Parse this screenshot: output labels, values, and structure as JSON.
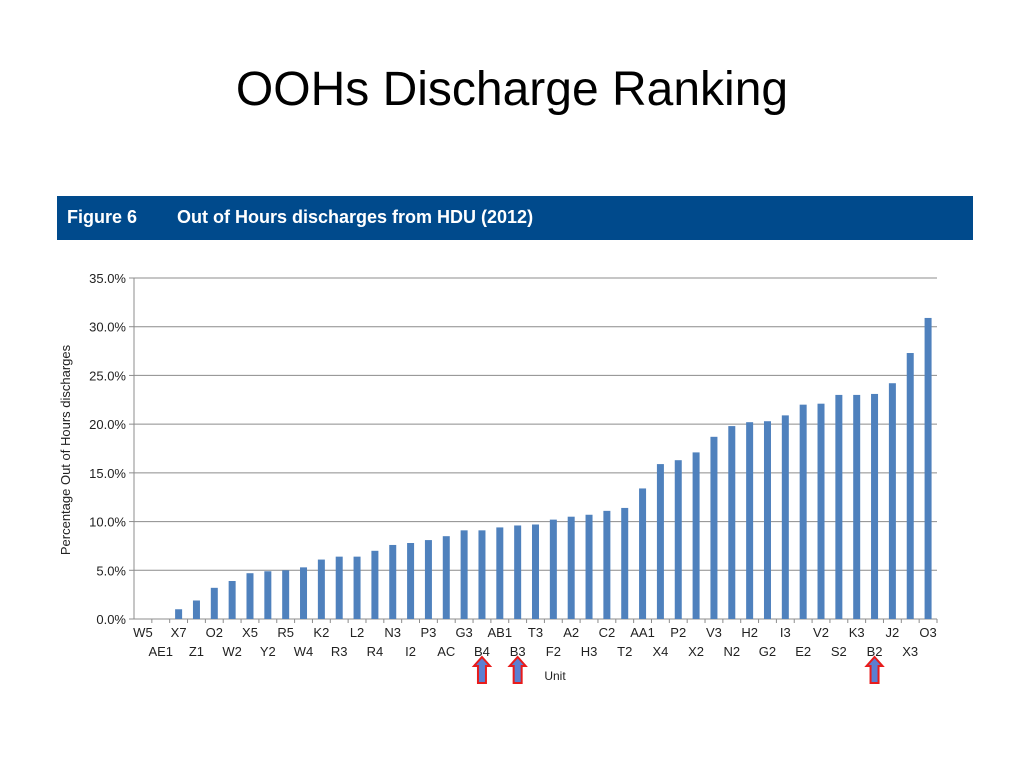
{
  "slide": {
    "title": "OOHs Discharge Ranking"
  },
  "figure": {
    "number": "Figure 6",
    "title": "Out of Hours discharges from HDU (2012)"
  },
  "chart_data": {
    "type": "bar",
    "title": "Out of Hours discharges from HDU (2012)",
    "xlabel": "Unit",
    "ylabel": "Percentage Out of Hours discharges",
    "ylim": [
      0,
      35
    ],
    "yticks": [
      "0.0%",
      "5.0%",
      "10.0%",
      "15.0%",
      "20.0%",
      "25.0%",
      "30.0%",
      "35.0%"
    ],
    "grid": true,
    "bar_color": "#4f81bd",
    "categories": [
      "W5",
      "AE1",
      "X7",
      "Z1",
      "O2",
      "W2",
      "X5",
      "Y2",
      "R5",
      "W4",
      "K2",
      "R3",
      "L2",
      "R4",
      "N3",
      "I2",
      "P3",
      "AC",
      "G3",
      "B4",
      "AB1",
      "B3",
      "T3",
      "F2",
      "A2",
      "H3",
      "C2",
      "T2",
      "AA1",
      "X4",
      "P2",
      "X2",
      "V3",
      "N2",
      "H2",
      "G2",
      "I3",
      "E2",
      "V2",
      "S2",
      "K3",
      "B2",
      "J2",
      "X3",
      "O3"
    ],
    "values": [
      0.0,
      0.0,
      1.0,
      1.9,
      3.2,
      3.9,
      4.7,
      4.9,
      5.0,
      5.3,
      6.1,
      6.4,
      6.4,
      7.0,
      7.6,
      7.8,
      8.1,
      8.5,
      9.1,
      9.1,
      9.4,
      9.6,
      9.7,
      10.2,
      10.5,
      10.7,
      11.1,
      11.4,
      13.4,
      15.9,
      16.3,
      17.1,
      18.7,
      19.8,
      20.2,
      20.3,
      20.9,
      22.0,
      22.1,
      23.0,
      23.0,
      23.1,
      24.2,
      27.3,
      30.9
    ],
    "highlighted_units": [
      "B4",
      "B3",
      "B2"
    ],
    "highlight_color": "#e81c1c",
    "highlight_fill": "#5b7fd1"
  }
}
